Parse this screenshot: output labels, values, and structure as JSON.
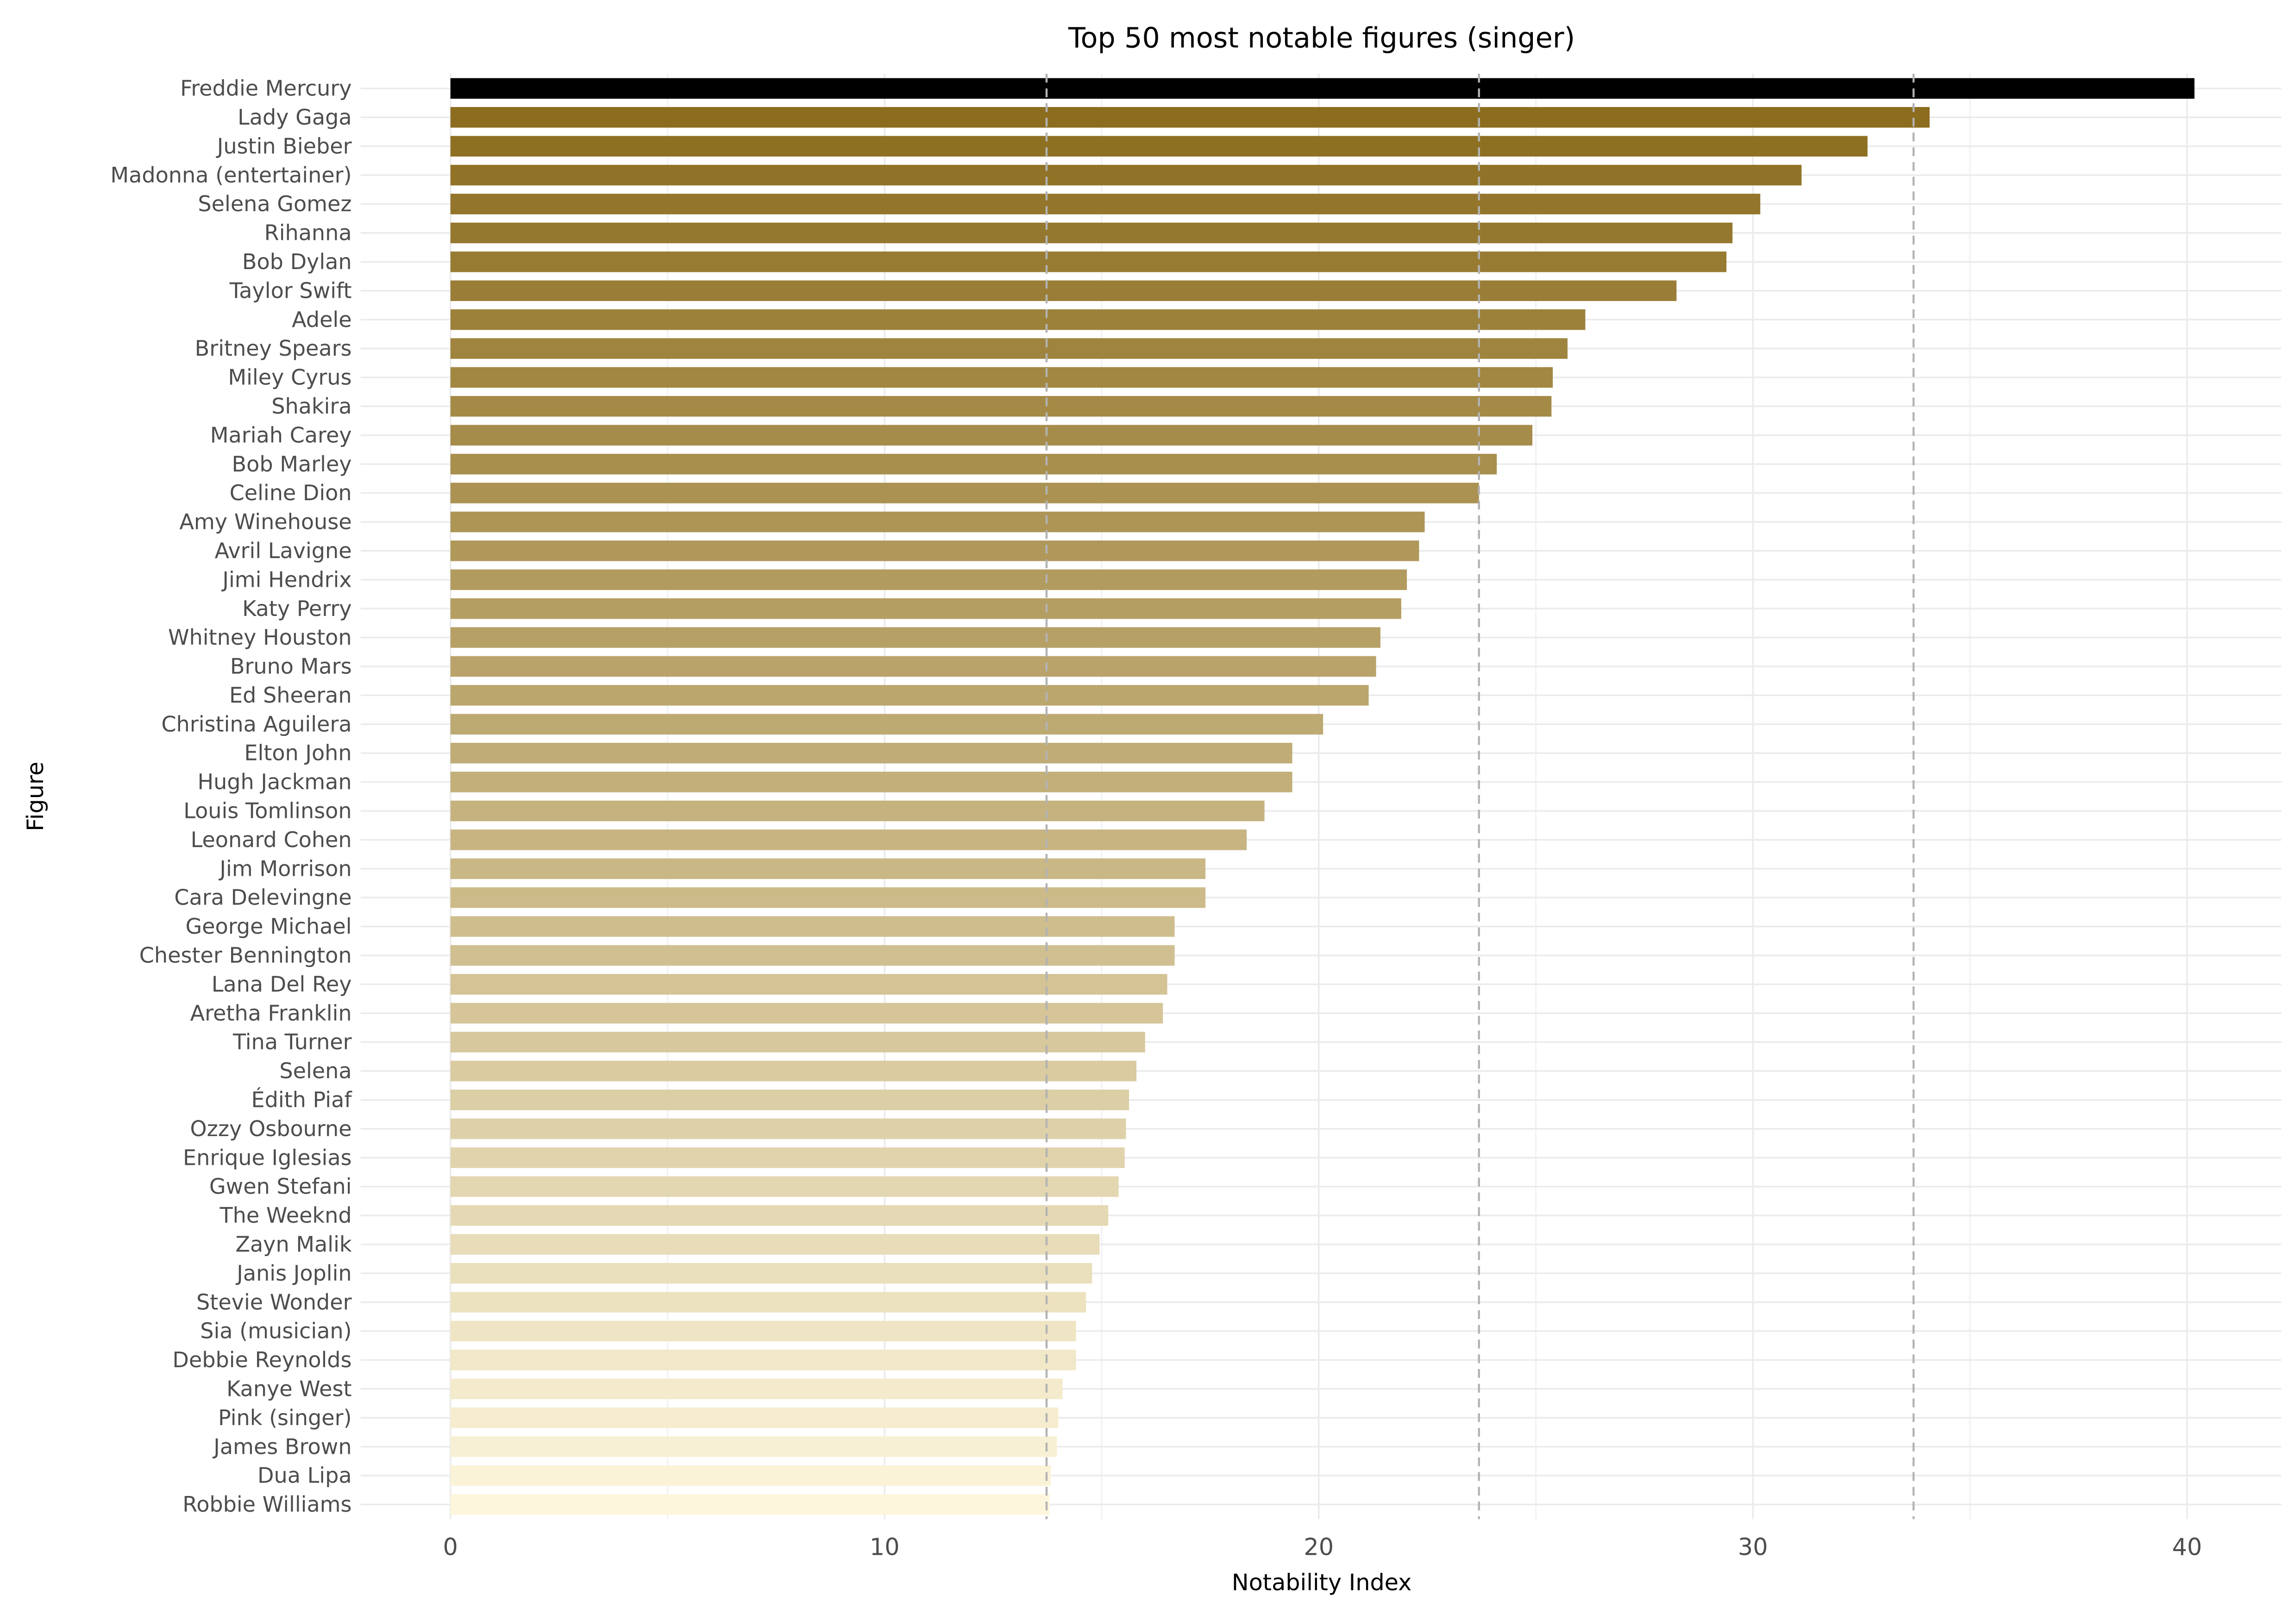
{
  "chart_data": {
    "type": "hbar",
    "title": "Top 50 most notable figures (singer)",
    "x_label": "Notability Index",
    "y_label": "Figure",
    "categories": [
      "Freddie Mercury",
      "Lady Gaga",
      "Justin Bieber",
      "Madonna (entertainer)",
      "Selena Gomez",
      "Rihanna",
      "Bob Dylan",
      "Taylor Swift",
      "Adele",
      "Britney Spears",
      "Miley Cyrus",
      "Shakira",
      "Mariah Carey",
      "Bob Marley",
      "Celine Dion",
      "Amy Winehouse",
      "Avril Lavigne",
      "Jimi Hendrix",
      "Katy Perry",
      "Whitney Houston",
      "Bruno Mars",
      "Ed Sheeran",
      "Christina Aguilera",
      "Elton John",
      "Hugh Jackman",
      "Louis Tomlinson",
      "Leonard Cohen",
      "Jim Morrison",
      "Cara Delevingne",
      "George Michael",
      "Chester Bennington",
      "Lana Del Rey",
      "Aretha Franklin",
      "Tina Turner",
      "Selena",
      "Édith Piaf",
      "Ozzy Osbourne",
      "Enrique Iglesias",
      "Gwen Stefani",
      "The Weeknd",
      "Zayn Malik",
      "Janis Joplin",
      "Stevie Wonder",
      "Sia (musician)",
      "Debbie Reynolds",
      "Kanye West",
      "Pink (singer)",
      "James Brown",
      "Dua Lipa",
      "Robbie Williams"
    ],
    "values": [
      40.17,
      34.07,
      32.64,
      31.12,
      30.17,
      29.53,
      29.39,
      28.24,
      26.14,
      25.73,
      25.39,
      25.36,
      24.92,
      24.1,
      23.69,
      22.44,
      22.31,
      22.03,
      21.9,
      21.42,
      21.32,
      21.15,
      20.1,
      19.39,
      19.39,
      18.75,
      18.34,
      17.39,
      17.39,
      16.68,
      16.68,
      16.51,
      16.41,
      16.0,
      15.8,
      15.63,
      15.56,
      15.53,
      15.39,
      15.15,
      14.95,
      14.78,
      14.64,
      14.41,
      14.41,
      14.1,
      14.0,
      13.97,
      13.83,
      13.8
    ],
    "highlight_color": "#000000",
    "gradient": [
      "#8c6d1f",
      "#fdf6dc"
    ],
    "xlim": [
      -2.07,
      42.17
    ],
    "xticks": [
      0,
      10,
      20,
      30,
      40
    ],
    "minor_xticks": [
      5,
      15,
      25,
      35
    ],
    "reference_lines": [
      13.73,
      23.69,
      33.7
    ],
    "grid": true
  }
}
